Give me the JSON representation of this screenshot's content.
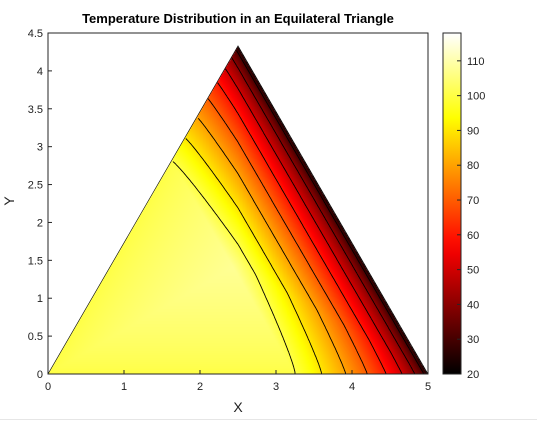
{
  "chart_data": {
    "type": "heatmap",
    "subtype": "filled-contour",
    "title": "Temperature Distribution in an Equilateral Triangle",
    "xlabel": "X",
    "ylabel": "Y",
    "xlim": [
      0,
      5
    ],
    "ylim": [
      0,
      4.5
    ],
    "x_ticks": [
      "0",
      "1",
      "2",
      "3",
      "4",
      "5"
    ],
    "y_ticks": [
      "0",
      "0.5",
      "1",
      "1.5",
      "2",
      "2.5",
      "3",
      "3.5",
      "4",
      "4.5"
    ],
    "colormap": "hot",
    "colorbar": {
      "range": [
        20,
        118
      ],
      "ticks": [
        "20",
        "30",
        "40",
        "50",
        "60",
        "70",
        "80",
        "90",
        "100",
        "110"
      ]
    },
    "domain": {
      "shape": "equilateral-triangle",
      "vertices": [
        [
          0,
          0
        ],
        [
          5,
          0
        ],
        [
          2.5,
          4.33
        ]
      ]
    },
    "field": {
      "hot_spot": [
        1.8,
        1.0
      ],
      "peak_value": 118,
      "hot_edge_value": 100,
      "cold_edge": "right edge from (5, 0) to (2.5, 4.33)",
      "cold_edge_value": 20
    },
    "contour_levels": [
      30,
      40,
      50,
      60,
      70,
      80,
      90,
      100,
      110
    ],
    "contour_color": "#000000"
  }
}
